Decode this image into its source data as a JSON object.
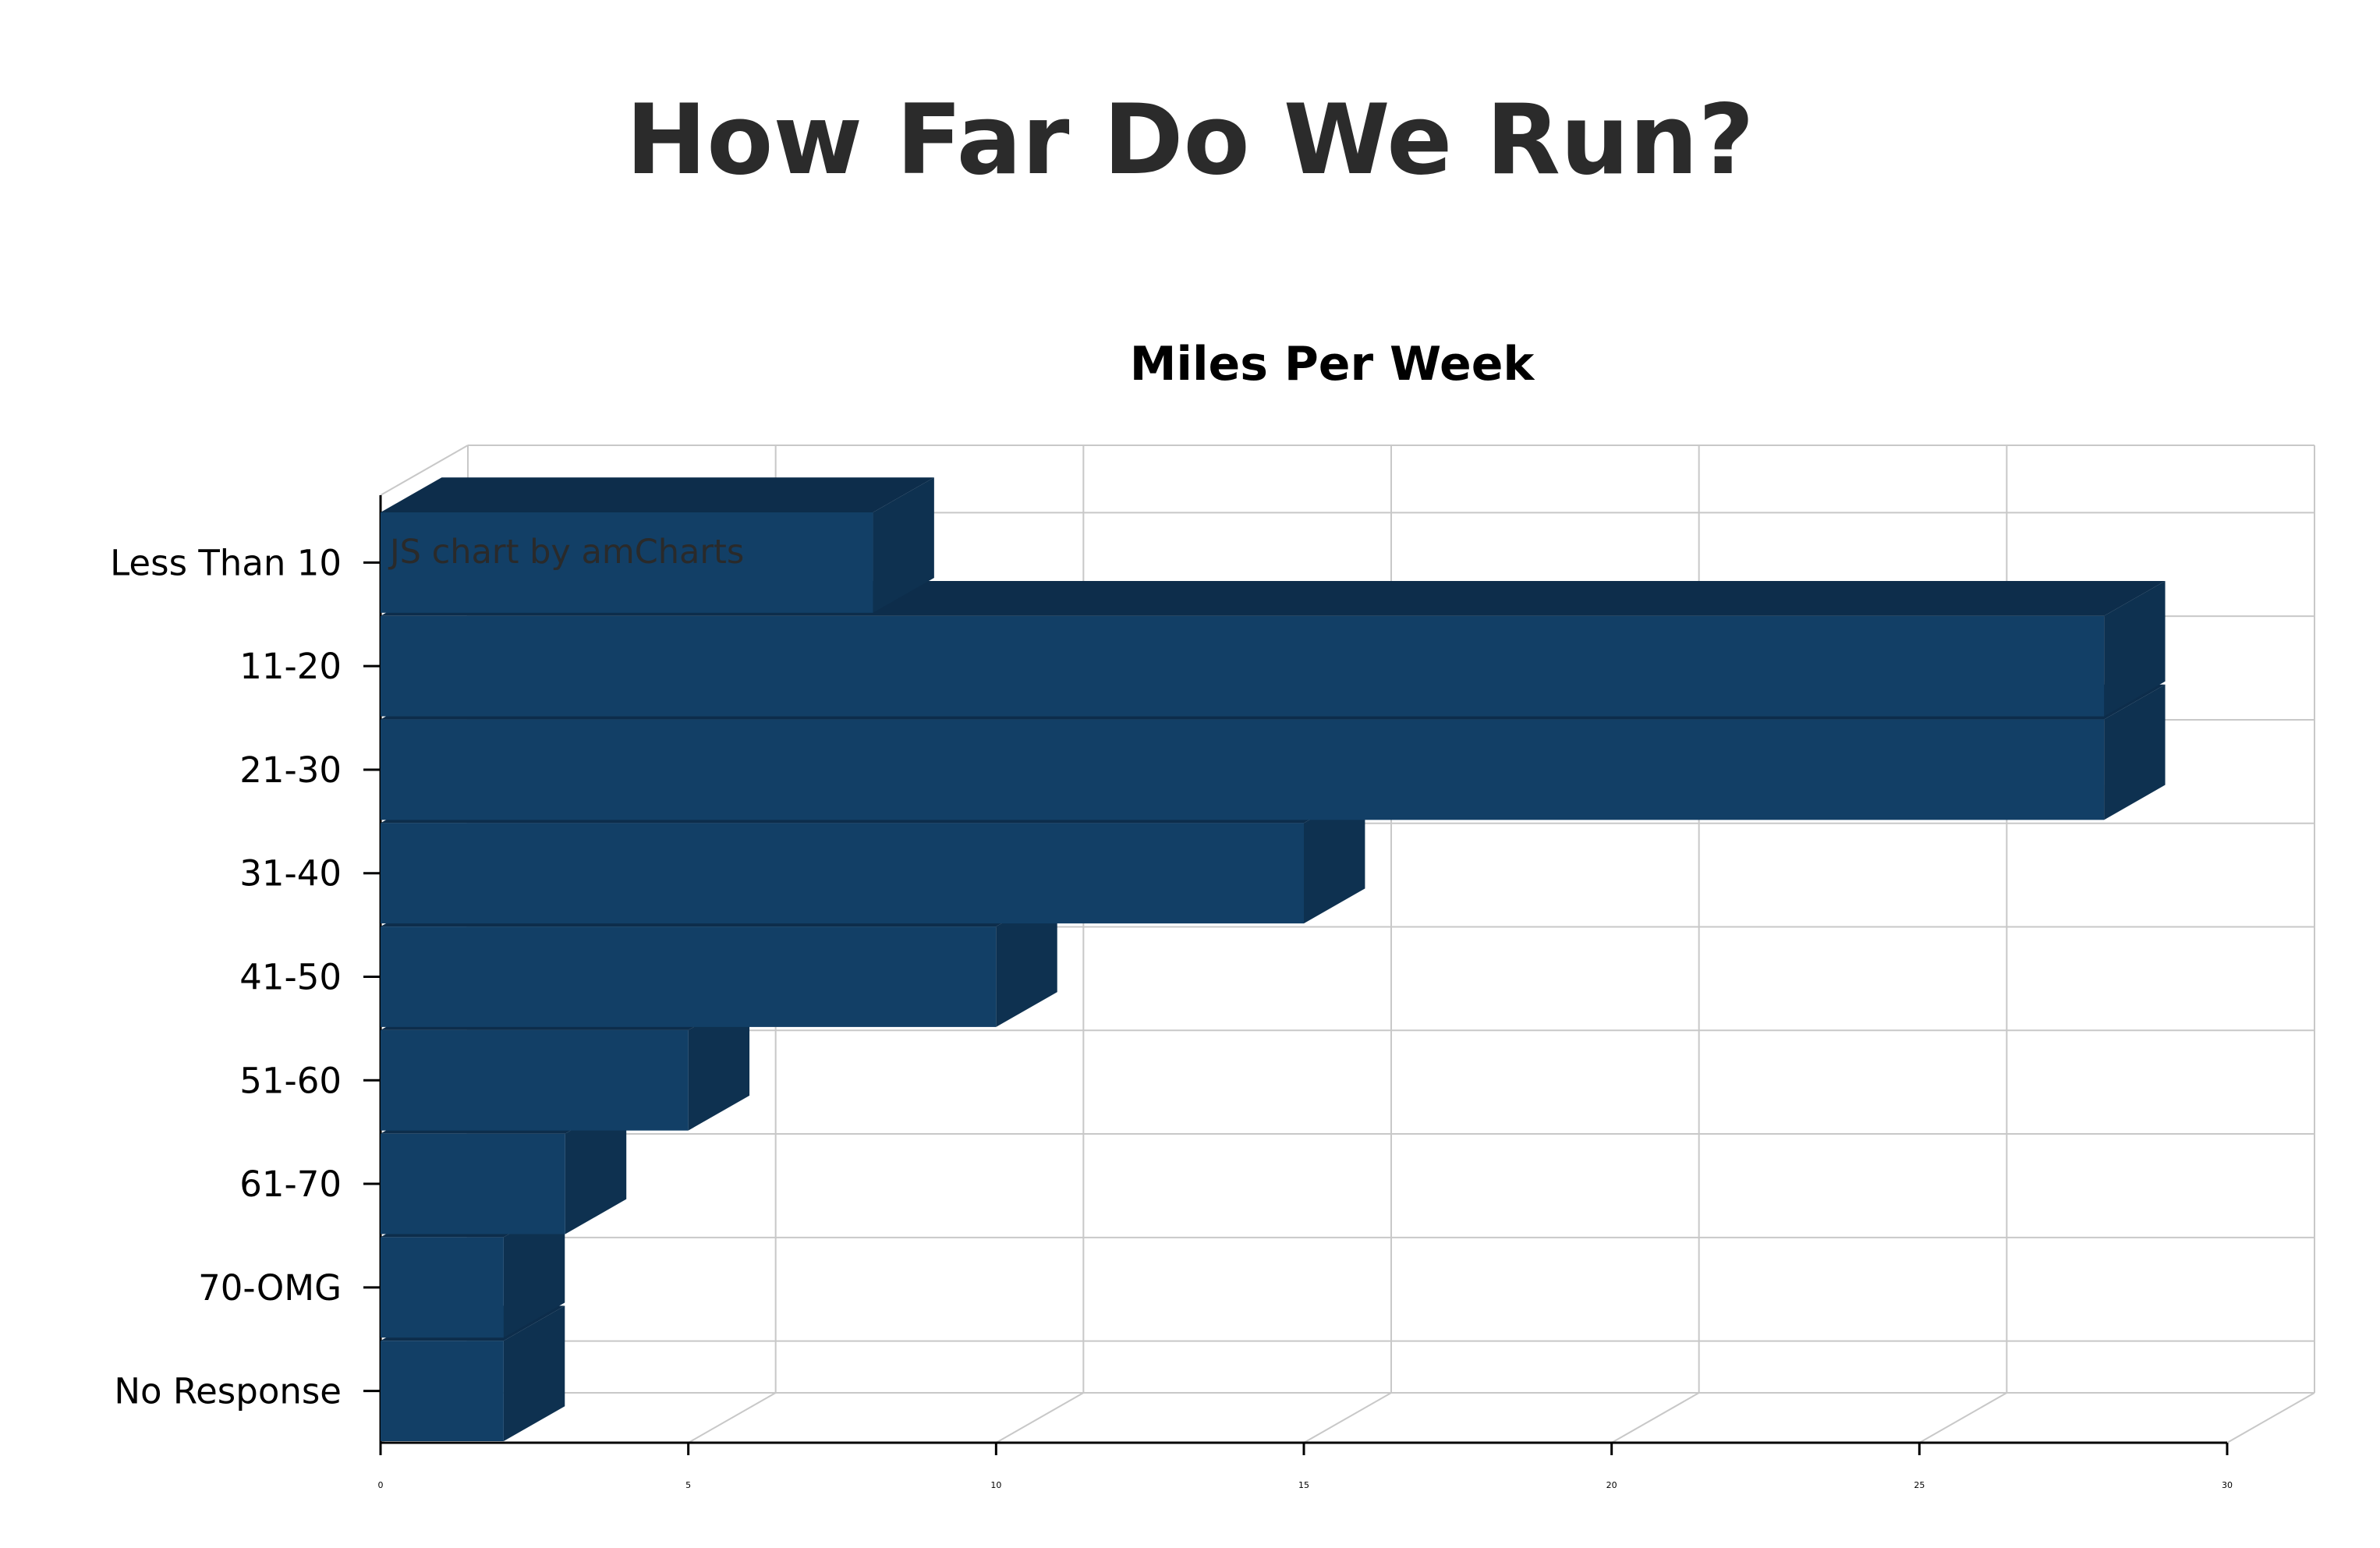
{
  "page": {
    "title": "How Far Do We Run?"
  },
  "chart_data": {
    "type": "bar",
    "orientation": "horizontal",
    "three_d": true,
    "title": "Miles Per Week",
    "xlabel": "",
    "ylabel": "",
    "categories": [
      "Less Than 10",
      "11-20",
      "21-30",
      "31-40",
      "41-50",
      "51-60",
      "61-70",
      "70-OMG",
      "No Response"
    ],
    "values": [
      8,
      28,
      28,
      15,
      10,
      5,
      3,
      2,
      2
    ],
    "xlim": [
      0,
      30
    ],
    "x_ticks": [
      "0",
      "5",
      "10",
      "15",
      "20",
      "25",
      "30"
    ],
    "grid": true,
    "legend": "none",
    "bar_color": "#123f66",
    "bar_side_color": "#0e3150",
    "bar_top_color": "#0d2d4b",
    "credit": "JS chart by amCharts"
  }
}
